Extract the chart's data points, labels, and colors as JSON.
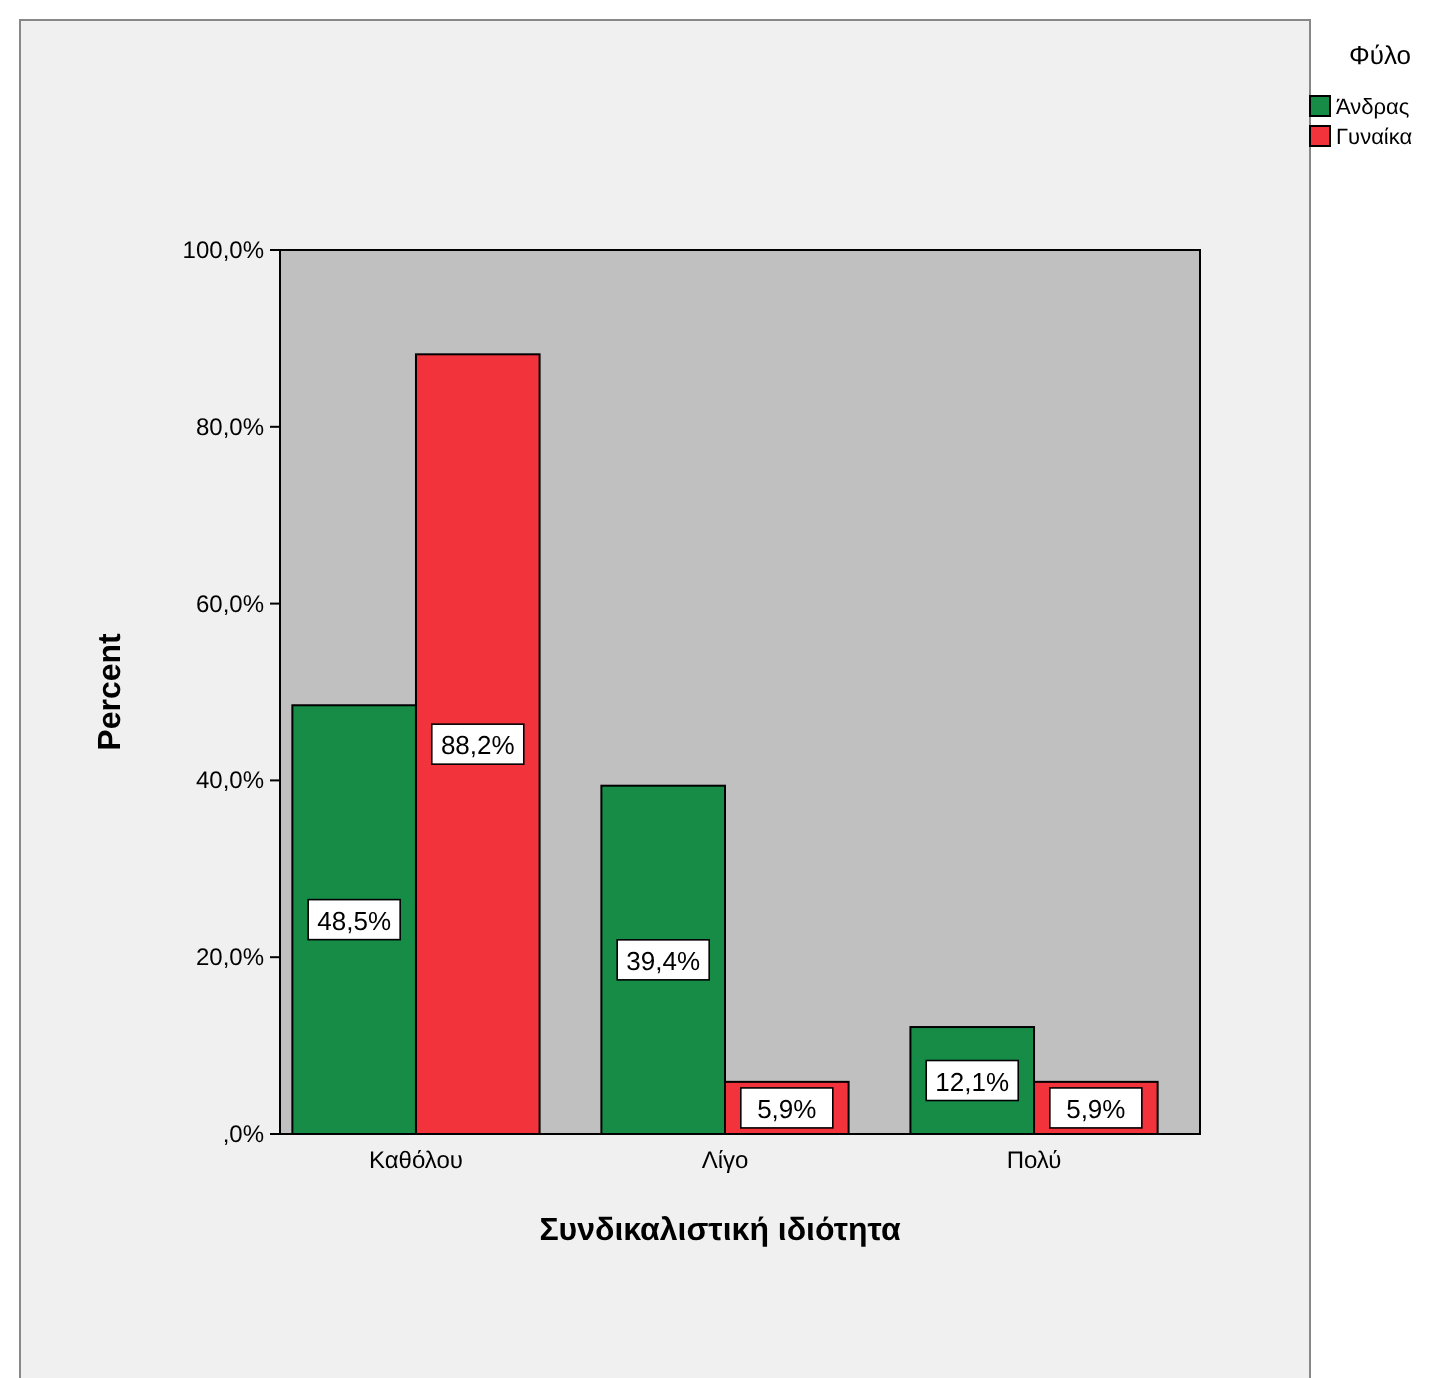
{
  "chart_data": {
    "type": "bar",
    "xlabel": "Συνδικαλιστική ιδιότητα",
    "ylabel": "Percent",
    "legend_title": "Φύλο",
    "legend": "top right",
    "grid": false,
    "categories": [
      "Καθόλου",
      "Λίγο",
      "Πολύ"
    ],
    "series": [
      {
        "name": "Άνδρας",
        "color": "#168c46",
        "values": [
          48.5,
          39.4,
          12.1
        ],
        "value_labels": [
          "48,5%",
          "39,4%",
          "12,1%"
        ]
      },
      {
        "name": "Γυναίκα",
        "color": "#f2333c",
        "values": [
          88.2,
          5.9,
          5.9
        ],
        "value_labels": [
          "88,2%",
          "5,9%",
          "5,9%"
        ]
      }
    ],
    "ylim": [
      0,
      100
    ],
    "yticks": [
      {
        "value": 0,
        "label": ",0%"
      },
      {
        "value": 20,
        "label": "20,0%"
      },
      {
        "value": 40,
        "label": "40,0%"
      },
      {
        "value": 60,
        "label": "60,0%"
      },
      {
        "value": 80,
        "label": "80,0%"
      },
      {
        "value": 100,
        "label": "100,0%"
      }
    ]
  }
}
